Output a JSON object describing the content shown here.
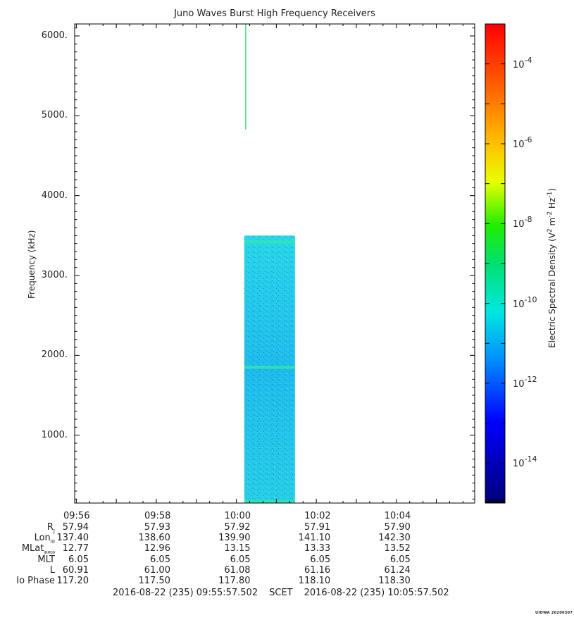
{
  "title": "Juno Waves Burst High Frequency Receivers",
  "watermark": "UIOWA 20200307",
  "chart_data": {
    "type": "heatmap",
    "title": "Juno Waves Burst High Frequency Receivers",
    "ylabel": "Frequency (kHz)",
    "ylim": [
      150,
      6150
    ],
    "yticks": [
      {
        "value": 1000,
        "label": "1000."
      },
      {
        "value": 2000,
        "label": "2000."
      },
      {
        "value": 3000,
        "label": "3000."
      },
      {
        "value": 4000,
        "label": "4000."
      },
      {
        "value": 5000,
        "label": "5000."
      },
      {
        "value": 6000,
        "label": "6000."
      }
    ],
    "xlim": [
      "09:55:57.502",
      "10:05:57.502"
    ],
    "xticks": [
      "09:56",
      "09:58",
      "10:00",
      "10:02",
      "10:04"
    ],
    "data_block": {
      "t_start": "10:00:12",
      "t_end": "10:01:28",
      "f_min": 150,
      "f_max": 3500,
      "background_density": "1e-12",
      "bands": [
        {
          "f": 3420,
          "density": "1e-10"
        },
        {
          "f": 1850,
          "density": "1e-10"
        },
        {
          "f": 170,
          "density": "1e-9"
        }
      ]
    },
    "spike": {
      "t": "10:00:14",
      "f_min": 4830,
      "f_max": 6150,
      "density": "1e-9"
    },
    "colorbar": {
      "label_parts": [
        "Electric Spectral Density (V",
        "2",
        " m",
        "-2",
        " Hz",
        "-1",
        ")"
      ],
      "scale": "log",
      "range": [
        "1e-15",
        "1e-3"
      ],
      "ticks": [
        {
          "exp": -4,
          "base": "10",
          "sup": "-4"
        },
        {
          "exp": -6,
          "base": "10",
          "sup": "-6"
        },
        {
          "exp": -8,
          "base": "10",
          "sup": "-8"
        },
        {
          "exp": -10,
          "base": "10",
          "sup": "-10"
        },
        {
          "exp": -12,
          "base": "10",
          "sup": "-12"
        },
        {
          "exp": -14,
          "base": "10",
          "sup": "-14"
        }
      ]
    }
  },
  "ephemeris": {
    "rows": [
      {
        "label": "R",
        "sub": "J",
        "first": "57.94",
        "values": [
          "57.93",
          "57.92",
          "57.91",
          "57.90"
        ]
      },
      {
        "label": "Lon",
        "sub": "III",
        "first": "137.40",
        "values": [
          "138.60",
          "139.90",
          "141.10",
          "142.30"
        ]
      },
      {
        "label": "MLat",
        "sub": "JRM09",
        "first": "12.77",
        "values": [
          "12.96",
          "13.15",
          "13.33",
          "13.52"
        ]
      },
      {
        "label": "MLT",
        "sub": "",
        "first": "6.05",
        "values": [
          "6.05",
          "6.05",
          "6.05",
          "6.05"
        ]
      },
      {
        "label": "L",
        "sub": "",
        "first": "60.91",
        "values": [
          "61.00",
          "61.08",
          "61.16",
          "61.24"
        ]
      },
      {
        "label": "Io Phase",
        "sub": "",
        "first": "117.20",
        "values": [
          "117.50",
          "117.80",
          "118.10",
          "118.30"
        ]
      }
    ],
    "scet_start": "2016-08-22 (235) 09:55:57.502",
    "scet_label": "SCET",
    "scet_end": "2016-08-22 (235) 10:05:57.502"
  }
}
